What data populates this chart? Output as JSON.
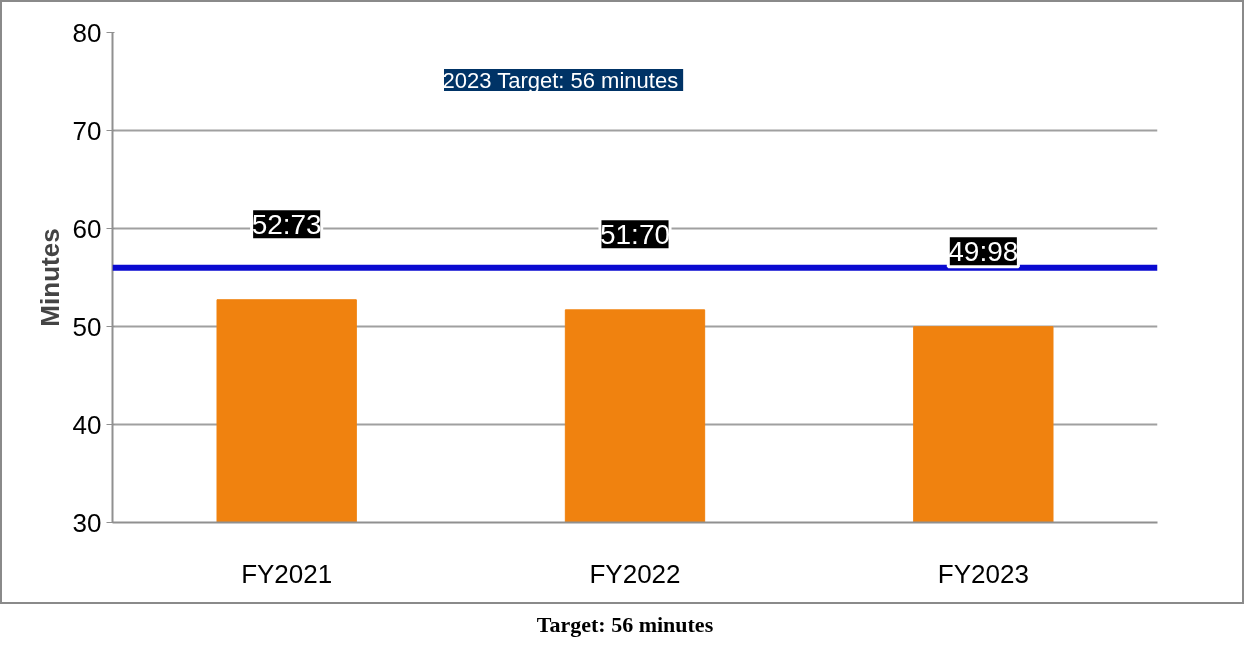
{
  "chart_data": {
    "type": "bar",
    "ylabel": "Minutes",
    "categories": [
      "FY2021",
      "FY2022",
      "FY2023"
    ],
    "series": [
      {
        "color": "#f0820f",
        "values": [
          52.73,
          51.7,
          49.98
        ]
      }
    ],
    "ylim": [
      30,
      80
    ],
    "yticks": [
      30,
      40,
      50,
      60,
      70,
      80
    ],
    "grid": "y",
    "ref_lines": [
      {
        "axis": "y",
        "value": 56,
        "color": "#0a0ad0"
      }
    ],
    "annotations": [
      "2023 Target:  56 minutes",
      "Target: 56 minutes",
      {
        "text": "52:73",
        "x": "FY2021",
        "y": 52.73
      },
      {
        "text": "51:70",
        "x": "FY2022",
        "y": 51.7
      },
      {
        "text": "49:98",
        "x": "FY2023",
        "y": 49.98
      }
    ]
  }
}
